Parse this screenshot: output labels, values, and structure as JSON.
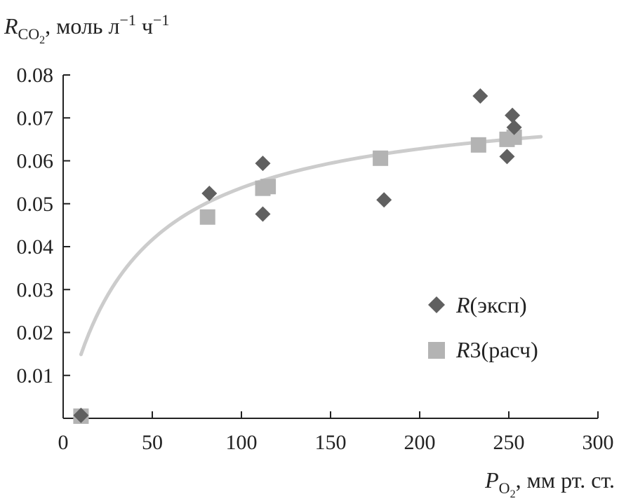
{
  "chart_data": {
    "type": "scatter",
    "ylabel": {
      "main": "R",
      "sub": "CO",
      "sub_digit": "2",
      "rest": ", моль л",
      "exp1": "−1",
      "rest2": " ч",
      "exp2": "−1"
    },
    "xlabel": {
      "main": "P",
      "sub": "O",
      "sub_digit": "2",
      "rest": ", мм рт. ст."
    },
    "xlim": [
      0,
      300
    ],
    "ylim": [
      0,
      0.08
    ],
    "x_ticks": [
      "0",
      "50",
      "100",
      "150",
      "200",
      "250",
      "300"
    ],
    "y_ticks": [
      "0.01",
      "0.02",
      "0.03",
      "0.04",
      "0.05",
      "0.06",
      "0.07",
      "0.08"
    ],
    "legend_position": "right",
    "series": [
      {
        "name": "R(эксп)",
        "name_italic": "R",
        "name_rest": "(эксп)",
        "marker": "diamond",
        "color": "#606060",
        "points": [
          [
            10,
            0.0007
          ],
          [
            82,
            0.0524
          ],
          [
            112,
            0.0594
          ],
          [
            112,
            0.0476
          ],
          [
            180,
            0.0509
          ],
          [
            234,
            0.0751
          ],
          [
            249,
            0.061
          ],
          [
            252,
            0.0706
          ],
          [
            253,
            0.0678
          ]
        ]
      },
      {
        "name": "R3(расч)",
        "name_italic": "R",
        "name_rest": "3(расч)",
        "marker": "square",
        "color": "#b3b3b3",
        "points": [
          [
            10,
            0.0005
          ],
          [
            81,
            0.0469
          ],
          [
            112,
            0.0536
          ],
          [
            115,
            0.054
          ],
          [
            178,
            0.0606
          ],
          [
            233,
            0.0637
          ],
          [
            249,
            0.065
          ],
          [
            253,
            0.0655
          ]
        ]
      },
      {
        "marker": "line",
        "color": "#cccccc",
        "fit_function": {
          "form": "a*x/(b+x)",
          "a": 0.0756,
          "b": 40.8,
          "x_from": 10,
          "x_to": 268
        }
      }
    ]
  }
}
